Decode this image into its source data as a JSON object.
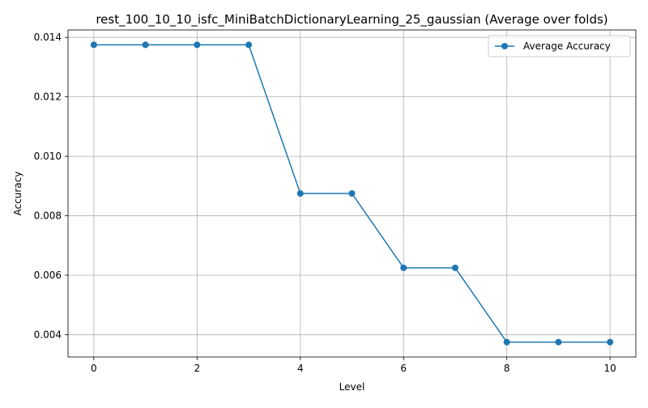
{
  "chart_data": {
    "type": "line",
    "title": "rest_100_10_10_isfc_MiniBatchDictionaryLearning_25_gaussian (Average over folds)",
    "xlabel": "Level",
    "ylabel": "Accuracy",
    "x": [
      0,
      1,
      2,
      3,
      4,
      5,
      6,
      7,
      8,
      9,
      10
    ],
    "series": [
      {
        "name": "Average Accuracy",
        "values": [
          0.01375,
          0.01375,
          0.01375,
          0.01375,
          0.00875,
          0.00875,
          0.00625,
          0.00625,
          0.00375,
          0.00375,
          0.00375
        ],
        "color": "#1f77b4"
      }
    ],
    "xlim": [
      -0.5,
      10.5
    ],
    "ylim": [
      0.00325,
      0.01425
    ],
    "xticks": [
      0,
      2,
      4,
      6,
      8,
      10
    ],
    "xtick_labels": [
      "0",
      "2",
      "4",
      "6",
      "8",
      "10"
    ],
    "yticks": [
      0.004,
      0.006,
      0.008,
      0.01,
      0.012,
      0.014
    ],
    "ytick_labels": [
      "0.004",
      "0.006",
      "0.008",
      "0.010",
      "0.012",
      "0.014"
    ],
    "grid": true,
    "legend_position": "top-right"
  }
}
